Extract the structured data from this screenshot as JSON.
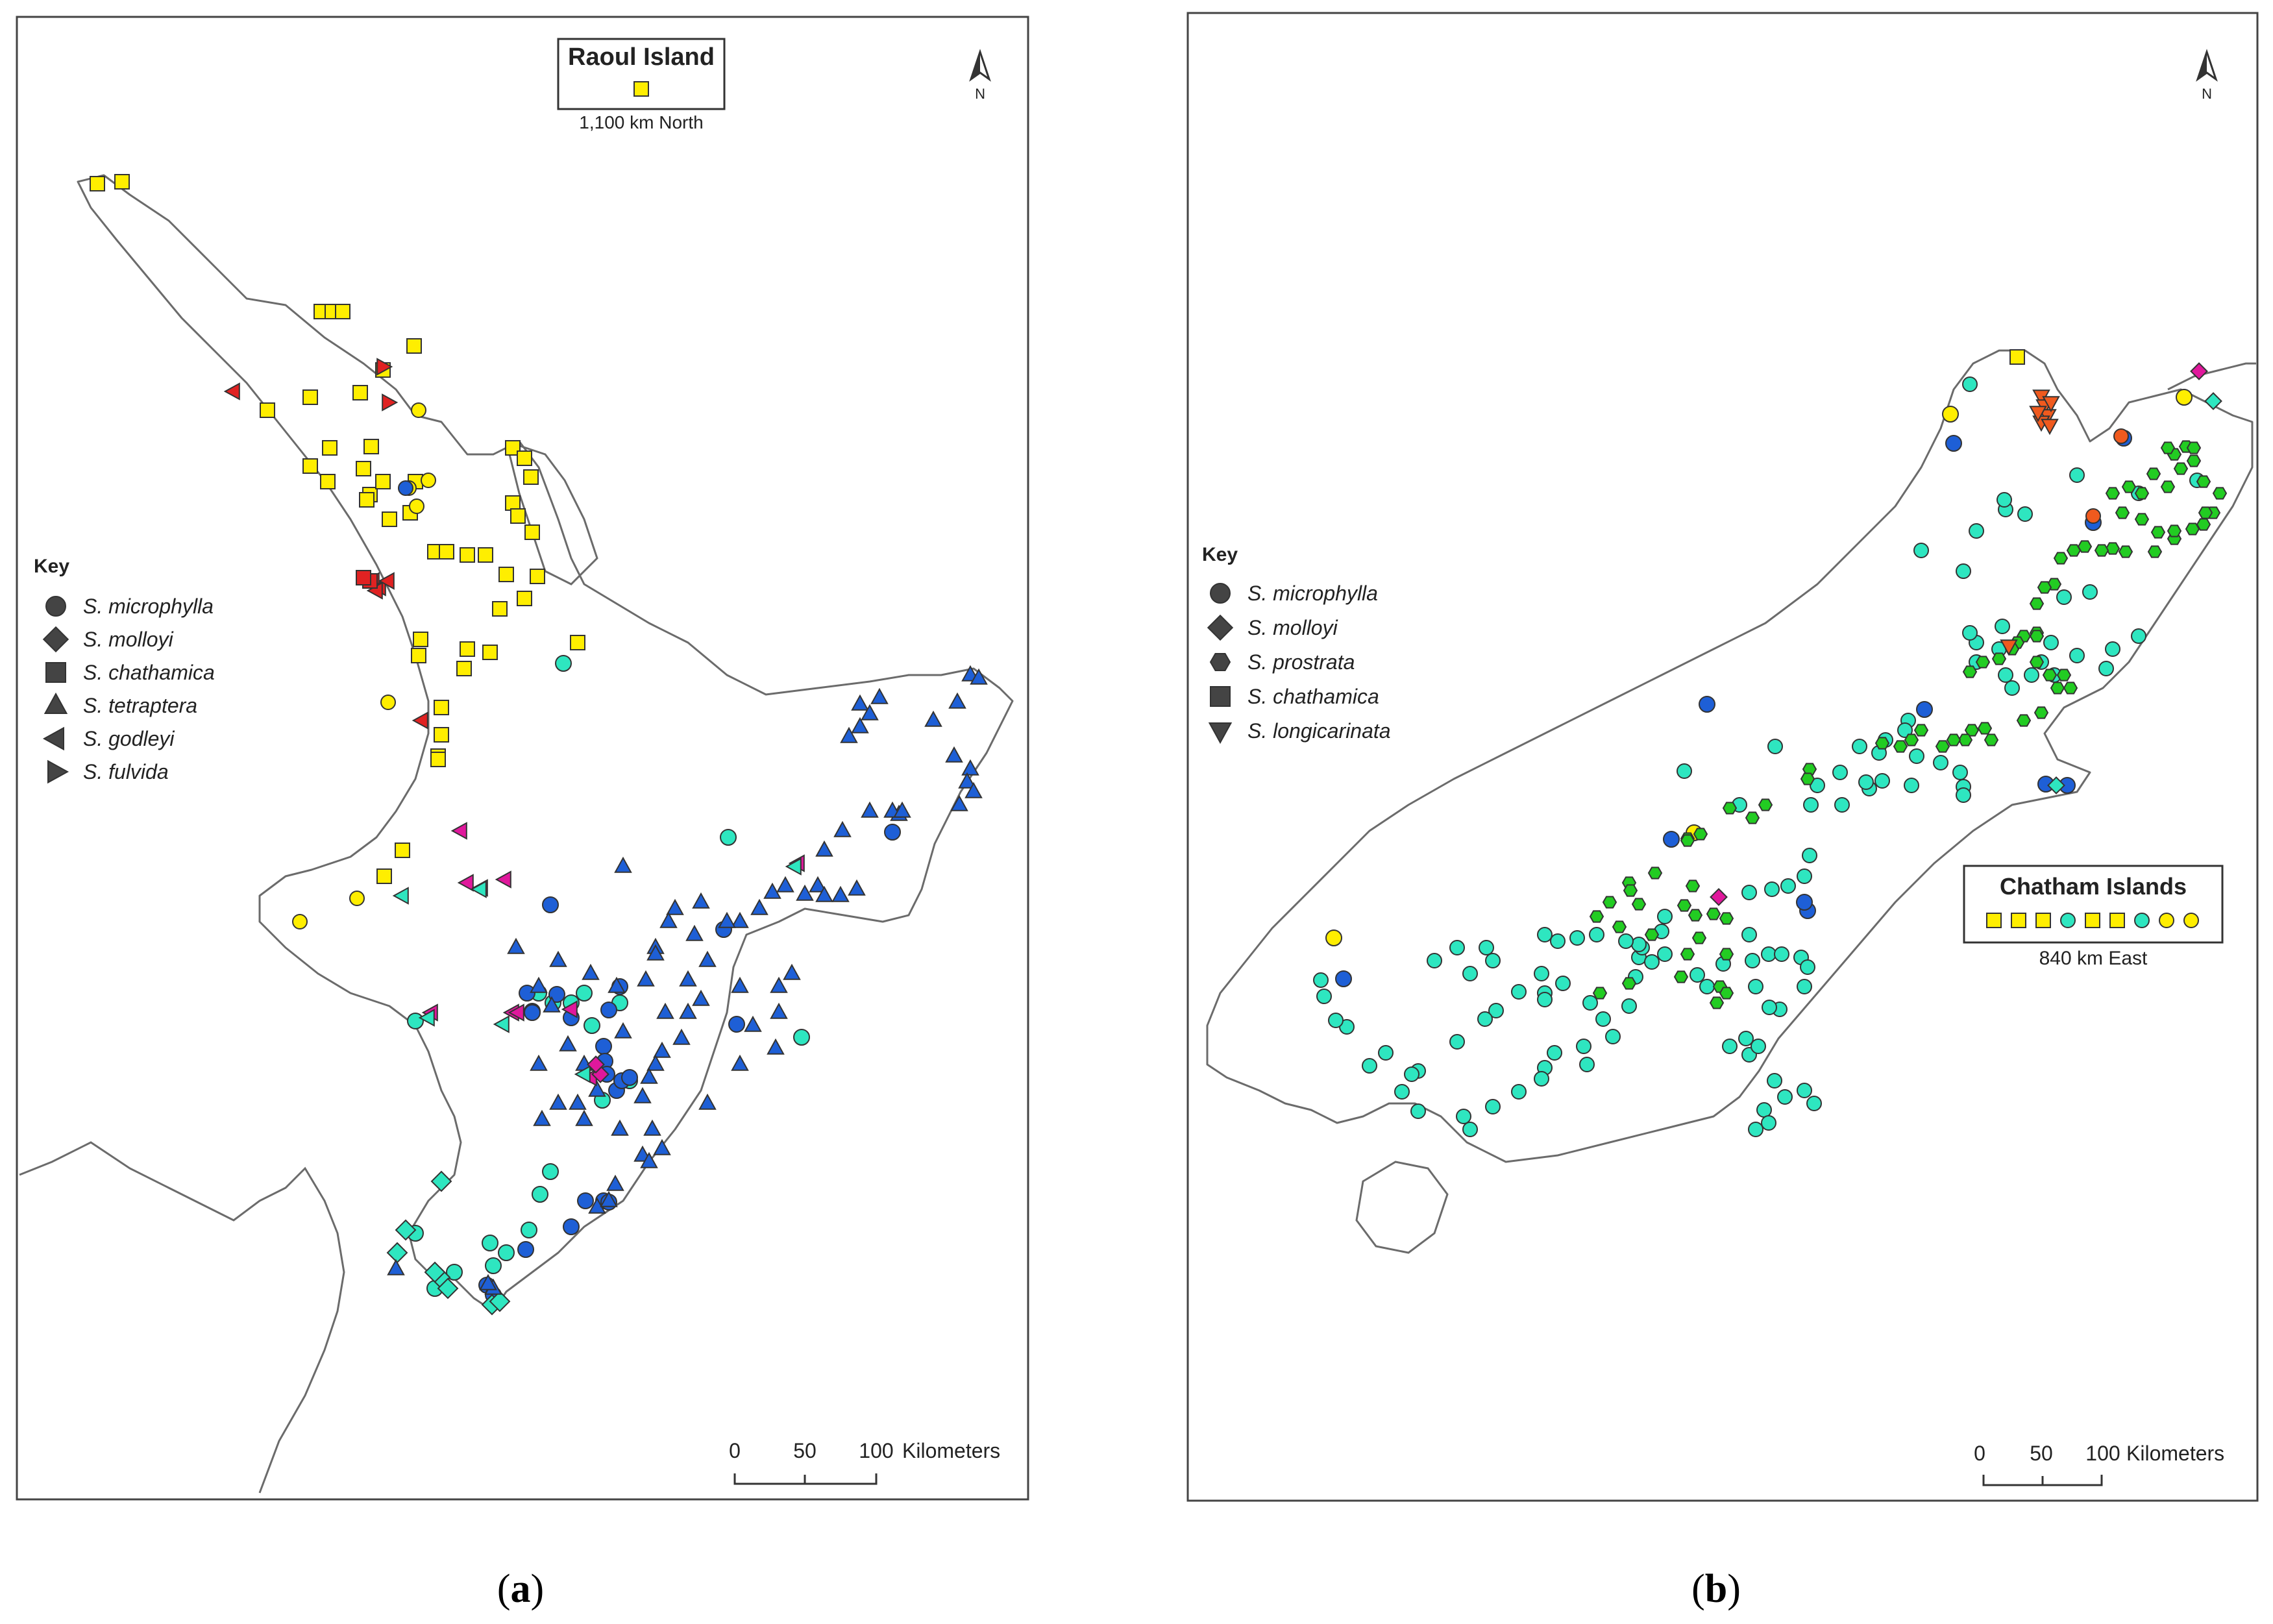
{
  "colors": {
    "yellow": "#ffee00",
    "cyan": "#2ee6c0",
    "blue": "#1e5fd6",
    "magenta": "#e0189c",
    "red": "#e02222",
    "green": "#22cc22",
    "orange": "#f05a1e",
    "outline": "#333333",
    "coast": "#6b6b6b"
  },
  "panel_a": {
    "caption_open": "(",
    "caption_letter": "a",
    "caption_close": ")",
    "inset": {
      "title": "Raoul Island",
      "distance": "1,100 km North"
    },
    "north_label": "N",
    "key": {
      "title": "Key",
      "items": [
        {
          "symbol": "circle",
          "label": "S. microphylla"
        },
        {
          "symbol": "diamond",
          "label": "S. molloyi"
        },
        {
          "symbol": "square",
          "label": "S. chathamica"
        },
        {
          "symbol": "triangle-up",
          "label": "S. tetraptera"
        },
        {
          "symbol": "triangle-left",
          "label": "S. godleyi"
        },
        {
          "symbol": "triangle-right",
          "label": "S. fulvida"
        }
      ]
    },
    "scale": {
      "ticks": [
        "0",
        "50",
        "100"
      ],
      "unit": "Kilometers"
    }
  },
  "panel_b": {
    "caption_open": "(",
    "caption_letter": "b",
    "caption_close": ")",
    "inset": {
      "title": "Chatham Islands",
      "distance": "840 km East",
      "symbols": [
        {
          "s": "square",
          "c": "yellow"
        },
        {
          "s": "square",
          "c": "yellow"
        },
        {
          "s": "square",
          "c": "yellow"
        },
        {
          "s": "circle",
          "c": "cyan"
        },
        {
          "s": "square",
          "c": "yellow"
        },
        {
          "s": "square",
          "c": "yellow"
        },
        {
          "s": "circle",
          "c": "cyan"
        },
        {
          "s": "circle",
          "c": "yellow"
        },
        {
          "s": "circle",
          "c": "yellow"
        }
      ]
    },
    "north_label": "N",
    "key": {
      "title": "Key",
      "items": [
        {
          "symbol": "circle",
          "label": "S. microphylla"
        },
        {
          "symbol": "diamond",
          "label": "S. molloyi"
        },
        {
          "symbol": "hexagon",
          "label": "S. prostrata"
        },
        {
          "symbol": "square",
          "label": "S. chathamica"
        },
        {
          "symbol": "triangle-down",
          "label": "S. longicarinata"
        }
      ]
    },
    "scale": {
      "ticks": [
        "0",
        "50",
        "100"
      ],
      "unit": "Kilometers"
    }
  }
}
